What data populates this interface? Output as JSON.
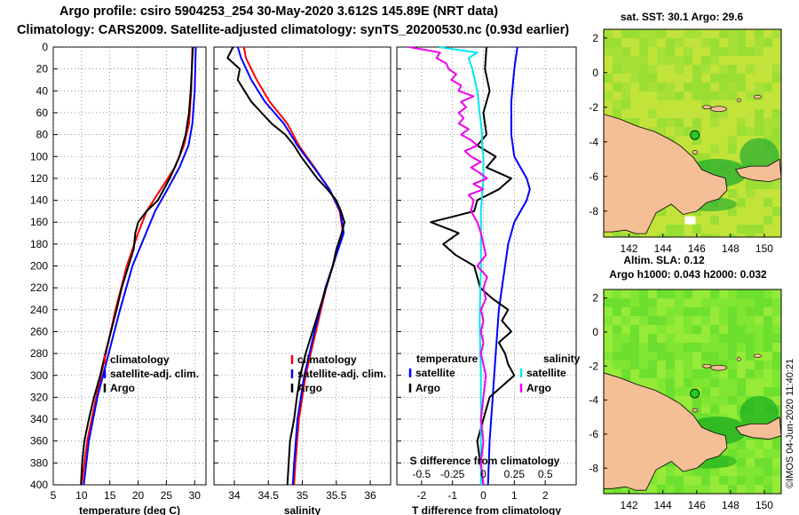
{
  "header": {
    "title_line1": "Argo profile: csiro 5904253_254 30-May-2020 3.612S 145.89E (NRT data)",
    "title_line2": "Climatology: CARS2009. Satellite-adjusted climatology: synTS_20200530.nc (0.93d earlier)"
  },
  "colors": {
    "climatology": "#ff0000",
    "satellite": "#0000ff",
    "argo": "#000000",
    "sal_satellite": "#00e5ee",
    "sal_argo": "#ee00ee",
    "land": "#f4be96",
    "ocean_green": "#6ee830",
    "ocean_warm": "#e8e83a",
    "station": "#22cc22"
  },
  "chart_data": [
    {
      "type": "line",
      "id": "temperature",
      "xlabel": "temperature (deg C)",
      "xlim": [
        5,
        32
      ],
      "ylim": [
        0,
        400
      ],
      "xticks": [
        5,
        10,
        15,
        20,
        25,
        30
      ],
      "yticks": [
        0,
        20,
        40,
        60,
        80,
        100,
        120,
        140,
        160,
        180,
        200,
        220,
        240,
        260,
        280,
        300,
        320,
        340,
        360,
        380,
        400
      ],
      "legend": [
        "climatology",
        "satellite-adj. clim.",
        "Argo"
      ],
      "series": [
        {
          "name": "climatology",
          "color": "red",
          "depth": [
            0,
            40,
            70,
            90,
            110,
            130,
            150,
            170,
            200,
            240,
            280,
            320,
            360,
            400
          ],
          "values": [
            29.6,
            29.4,
            29.0,
            28.1,
            26.5,
            24.0,
            21.5,
            20.0,
            18.0,
            16.0,
            14.3,
            12.6,
            11.0,
            10.0
          ]
        },
        {
          "name": "satellite-adj. clim.",
          "color": "blue",
          "depth": [
            0,
            40,
            70,
            90,
            110,
            130,
            150,
            170,
            200,
            240,
            280,
            320,
            360,
            400
          ],
          "values": [
            30.2,
            30.0,
            29.6,
            28.9,
            27.3,
            25.2,
            23.0,
            21.4,
            19.0,
            16.8,
            14.8,
            12.8,
            11.3,
            10.4
          ]
        },
        {
          "name": "Argo",
          "color": "black",
          "depth": [
            0,
            20,
            40,
            60,
            80,
            100,
            120,
            140,
            150,
            160,
            170,
            185,
            200,
            220,
            240,
            260,
            280,
            300,
            320,
            340,
            360,
            380,
            400
          ],
          "values": [
            29.7,
            29.5,
            29.3,
            29.0,
            28.4,
            27.3,
            25.6,
            23.5,
            21.5,
            20.0,
            19.5,
            19.2,
            18.3,
            17.1,
            16.2,
            15.2,
            14.2,
            13.3,
            12.2,
            11.3,
            10.5,
            10.1,
            9.9
          ]
        }
      ]
    },
    {
      "type": "line",
      "id": "salinity",
      "xlabel": "salinity",
      "xlim": [
        33.7,
        36.3
      ],
      "ylim": [
        0,
        400
      ],
      "xticks": [
        34,
        34.5,
        35,
        35.5,
        36
      ],
      "yticks": [
        0,
        20,
        40,
        60,
        80,
        100,
        120,
        140,
        160,
        180,
        200,
        220,
        240,
        260,
        280,
        300,
        320,
        340,
        360,
        380,
        400
      ],
      "legend": [
        "climatology",
        "satellite-adj. clim.",
        "Argo"
      ],
      "series": [
        {
          "name": "climatology",
          "color": "red",
          "depth": [
            0,
            10,
            30,
            50,
            70,
            90,
            110,
            130,
            150,
            170,
            190,
            220,
            260,
            300,
            340,
            380,
            400
          ],
          "values": [
            34.14,
            34.17,
            34.33,
            34.52,
            34.78,
            34.95,
            35.18,
            35.4,
            35.55,
            35.6,
            35.5,
            35.35,
            35.2,
            35.05,
            34.95,
            34.9,
            34.88
          ]
        },
        {
          "name": "satellite-adj. clim.",
          "color": "blue",
          "depth": [
            0,
            10,
            30,
            50,
            70,
            90,
            110,
            130,
            150,
            170,
            190,
            220,
            260,
            300,
            340,
            380,
            400
          ],
          "values": [
            34.05,
            34.1,
            34.25,
            34.45,
            34.73,
            34.93,
            35.17,
            35.4,
            35.56,
            35.61,
            35.5,
            35.34,
            35.18,
            35.03,
            34.93,
            34.88,
            34.86
          ]
        },
        {
          "name": "Argo",
          "color": "black",
          "depth": [
            0,
            10,
            20,
            30,
            40,
            50,
            60,
            70,
            80,
            90,
            100,
            110,
            120,
            130,
            140,
            150,
            160,
            170,
            185,
            200,
            220,
            240,
            260,
            280,
            300,
            320,
            340,
            360,
            380,
            400
          ],
          "values": [
            33.98,
            33.9,
            34.08,
            34.05,
            34.15,
            34.25,
            34.4,
            34.55,
            34.75,
            34.88,
            34.98,
            35.1,
            35.22,
            35.37,
            35.5,
            35.57,
            35.62,
            35.58,
            35.5,
            35.45,
            35.35,
            35.25,
            35.15,
            35.05,
            34.97,
            34.92,
            34.88,
            34.82,
            34.8,
            34.78
          ]
        }
      ]
    },
    {
      "type": "line",
      "id": "difference",
      "xlabel": "T difference from climatology",
      "top_axis_label": "S difference from climatology",
      "xlim": [
        -2.8,
        3
      ],
      "ylim": [
        0,
        400
      ],
      "xticks": [
        -2,
        -1,
        0,
        1,
        2
      ],
      "s_xlim": [
        -0.7,
        0.75
      ],
      "s_xticks": [
        -0.5,
        -0.25,
        0,
        0.25,
        0.5
      ],
      "s_xticklabels": [
        "-0.5",
        "-0.25",
        "0",
        "0.25",
        "0.5"
      ],
      "yticks": [
        0,
        20,
        40,
        60,
        80,
        100,
        120,
        140,
        160,
        180,
        200,
        220,
        240,
        260,
        280,
        300,
        320,
        340,
        360,
        380,
        400
      ],
      "legend": {
        "temperature_heading": "temperature",
        "salinity_heading": "salinity",
        "t_items": [
          "satellite",
          "Argo"
        ],
        "s_items": [
          "satellite",
          "Argo"
        ]
      },
      "series": [
        {
          "name": "T satellite",
          "color": "blue",
          "axis": "T",
          "depth": [
            0,
            20,
            50,
            80,
            100,
            110,
            120,
            130,
            140,
            150,
            160,
            170,
            180,
            200,
            240,
            280,
            320,
            360,
            400
          ],
          "values": [
            1.1,
            1.0,
            0.9,
            0.9,
            1.0,
            1.2,
            1.4,
            1.5,
            1.4,
            1.2,
            1.0,
            0.9,
            0.8,
            0.7,
            0.5,
            0.4,
            0.3,
            0.2,
            0.15
          ]
        },
        {
          "name": "T Argo",
          "color": "black",
          "axis": "T",
          "depth": [
            0,
            20,
            40,
            60,
            80,
            90,
            100,
            110,
            120,
            130,
            140,
            150,
            160,
            170,
            180,
            190,
            200,
            220,
            230,
            240,
            250,
            260,
            270,
            280,
            290,
            300,
            320,
            340,
            360,
            380,
            400
          ],
          "values": [
            0.1,
            0.05,
            0.2,
            0.0,
            0.1,
            -0.2,
            0.4,
            0.1,
            0.9,
            0.5,
            -0.2,
            -0.3,
            -1.7,
            -0.8,
            -1.3,
            -0.9,
            -0.3,
            -0.1,
            0.3,
            0.8,
            0.6,
            0.9,
            0.5,
            0.7,
            0.8,
            1.0,
            0.2,
            0.0,
            -0.2,
            -0.1,
            0.0
          ]
        },
        {
          "name": "S satellite",
          "color": "cyan",
          "axis": "S",
          "depth": [
            0,
            5,
            10,
            20,
            30,
            40,
            50,
            60,
            70,
            80,
            90,
            100,
            120,
            150,
            180,
            200,
            250,
            300,
            350,
            400
          ],
          "values": [
            -0.36,
            -0.05,
            -0.12,
            -0.09,
            -0.07,
            -0.05,
            -0.04,
            -0.03,
            -0.02,
            -0.01,
            -0.01,
            0.0,
            0.0,
            -0.02,
            -0.02,
            -0.02,
            -0.03,
            -0.02,
            -0.02,
            -0.02
          ]
        },
        {
          "name": "S Argo",
          "color": "magenta",
          "axis": "S",
          "depth": [
            0,
            5,
            10,
            15,
            20,
            25,
            30,
            35,
            40,
            45,
            50,
            55,
            60,
            65,
            70,
            75,
            80,
            85,
            90,
            95,
            100,
            105,
            110,
            115,
            120,
            125,
            130,
            135,
            140,
            150,
            160,
            170,
            180,
            190,
            200,
            210,
            220,
            230,
            240,
            250,
            260,
            270,
            280,
            300,
            320,
            340,
            360,
            380,
            400
          ],
          "values": [
            -0.6,
            -0.35,
            -0.38,
            -0.3,
            -0.28,
            -0.22,
            -0.26,
            -0.18,
            -0.2,
            -0.08,
            -0.18,
            -0.14,
            -0.2,
            -0.16,
            -0.2,
            -0.12,
            -0.18,
            -0.1,
            -0.05,
            -0.15,
            -0.1,
            -0.02,
            -0.1,
            -0.03,
            0.03,
            -0.08,
            0.0,
            -0.12,
            -0.08,
            -0.1,
            -0.05,
            -0.02,
            0.0,
            0.02,
            -0.05,
            0.03,
            0.0,
            0.02,
            -0.02,
            0.0,
            -0.02,
            0.0,
            -0.02,
            0.02,
            0.0,
            -0.02,
            0.0,
            -0.02,
            0.0
          ]
        }
      ]
    },
    {
      "type": "heatmap",
      "id": "sst-map",
      "title": "sat. SST: 30.1 Argo: 29.6",
      "xticks": [
        142,
        144,
        146,
        148,
        150
      ],
      "yticks": [
        2,
        0,
        -2,
        -4,
        -6,
        -8
      ],
      "xlim": [
        140.5,
        151
      ],
      "ylim": [
        -9.5,
        2.5
      ],
      "station": {
        "lon": 145.89,
        "lat": -3.612
      }
    },
    {
      "type": "heatmap",
      "id": "sla-map",
      "title_line1": "Altim. SLA: 0.12",
      "title_line2": "Argo h1000: 0.043 h2000: 0.032",
      "xticks": [
        142,
        144,
        146,
        148,
        150
      ],
      "yticks": [
        2,
        0,
        -2,
        -4,
        -6,
        -8
      ],
      "xlim": [
        140.5,
        151
      ],
      "ylim": [
        -9.5,
        2.5
      ],
      "station": {
        "lon": 145.89,
        "lat": -3.612
      }
    }
  ],
  "footer": {
    "credit": "©IMOS 04-Jun-2020 11:40:21"
  }
}
